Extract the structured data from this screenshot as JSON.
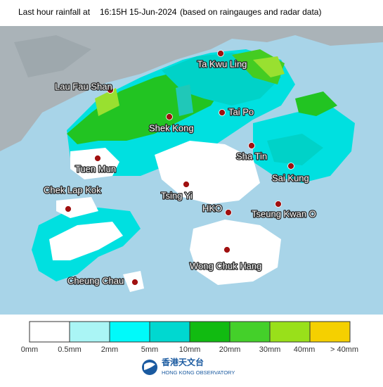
{
  "header": {
    "title": "Last hour rainfall at",
    "time": "16:15H 15-Jun-2024",
    "note": "(based on raingauges and radar data)"
  },
  "places": [
    "Ta Kwu Ling",
    "Lau Fau Shan",
    "Shek Kong",
    "Tai Po",
    "Sha Tin",
    "Tuen Mun",
    "Sai Kung",
    "Tsing Yi",
    "Chek Lap Kok",
    "HKO",
    "Tseung Kwan O",
    "Wong Chuk Hang",
    "Cheung Chau"
  ],
  "legend": {
    "colors": [
      "#ffffff",
      "#aaf5f5",
      "#00fafa",
      "#00d8d0",
      "#11bb11",
      "#44d02a",
      "#99e01a",
      "#f5d000"
    ],
    "labels": [
      "0mm",
      "0.5mm",
      "2mm",
      "5mm",
      "10mm",
      "20mm",
      "30mm",
      "40mm",
      "> 40mm"
    ]
  },
  "footer": {
    "chinese": "香港天文台",
    "english": "HONG KONG OBSERVATORY"
  }
}
